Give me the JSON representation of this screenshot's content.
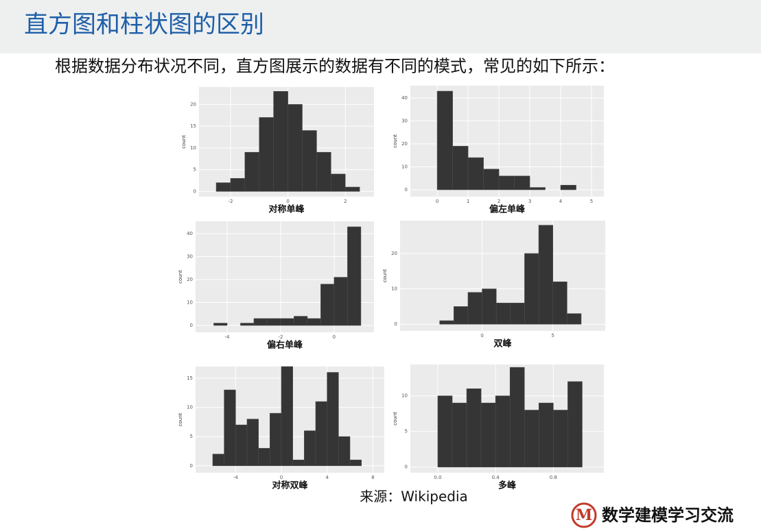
{
  "header": {
    "title": "直方图和柱状图的区别"
  },
  "subtitle": "根据数据分布状况不同，直方图展示的数据有不同的模式，常见的如下所示：",
  "source": "来源：Wikipedia",
  "logo": {
    "icon": "M",
    "text": "数学建模学习交流"
  },
  "chart_data": [
    {
      "type": "histogram",
      "title": "对称单峰",
      "ylabel": "count",
      "color": "#353535",
      "grid": true,
      "bins": [
        -2.5,
        -2,
        -1.5,
        -1,
        -0.5,
        0,
        0.5,
        1,
        1.5,
        2,
        2.5
      ],
      "values": [
        2,
        3,
        9,
        17,
        23,
        20,
        14,
        9,
        4,
        1
      ],
      "xlim": [
        -3.1,
        3
      ],
      "ylim": [
        -1.2,
        24
      ],
      "xticks": [
        -2,
        0,
        2
      ],
      "yticks": [
        0,
        5,
        10,
        15,
        20
      ]
    },
    {
      "type": "histogram",
      "title": "偏左单峰",
      "ylabel": "count",
      "color": "#353535",
      "grid": true,
      "bins": [
        0,
        0.5,
        1,
        1.5,
        2,
        2.5,
        3,
        3.5,
        4,
        4.5
      ],
      "values": [
        43,
        19,
        14,
        9,
        6,
        6,
        1,
        0,
        2
      ],
      "xlim": [
        -0.87,
        5.4
      ],
      "ylim": [
        -3,
        45.4
      ],
      "xticks": [
        0,
        1,
        2,
        3,
        4,
        5
      ],
      "yticks": [
        0,
        10,
        20,
        30,
        40
      ]
    },
    {
      "type": "histogram",
      "title": "偏右单峰",
      "ylabel": "count",
      "color": "#353535",
      "grid": true,
      "bins": [
        -4.5,
        -4,
        -3.5,
        -3,
        -2.5,
        -2,
        -1.5,
        -1,
        -0.5,
        0,
        0.5,
        1
      ],
      "values": [
        1,
        0,
        1,
        3,
        3,
        3,
        4,
        3,
        18,
        21,
        43
      ],
      "xlim": [
        -5.18,
        1.49
      ],
      "ylim": [
        -3,
        45.4
      ],
      "xticks": [
        -4,
        -2,
        0
      ],
      "yticks": [
        0,
        10,
        20,
        30,
        40
      ]
    },
    {
      "type": "histogram",
      "title": "双峰",
      "ylabel": "count",
      "color": "#353535",
      "grid": true,
      "bins": [
        -3,
        -2,
        -1,
        0,
        1,
        2,
        3,
        4,
        5,
        6,
        7
      ],
      "values": [
        1,
        5,
        9,
        10,
        6,
        6,
        20,
        28,
        12,
        3
      ],
      "xlim": [
        -5.8,
        8.7
      ],
      "ylim": [
        -1.9,
        29.3
      ],
      "xticks": [
        0,
        5
      ],
      "yticks": [
        0,
        10,
        20
      ]
    },
    {
      "type": "histogram",
      "title": "对称双峰",
      "ylabel": "count",
      "color": "#353535",
      "grid": true,
      "bins": [
        -6,
        -5,
        -4,
        -3,
        -2,
        -1,
        0,
        1,
        2,
        3,
        4,
        5,
        6,
        7
      ],
      "values": [
        2,
        13,
        7,
        8,
        3,
        9,
        17,
        1,
        6,
        11,
        16,
        5,
        1
      ],
      "xlim": [
        -7.5,
        9
      ],
      "ylim": [
        -1.2,
        17
      ],
      "xticks": [
        -4,
        0,
        4,
        8
      ],
      "yticks": [
        0,
        5,
        10,
        15
      ]
    },
    {
      "type": "histogram",
      "title": "多峰",
      "ylabel": "count",
      "color": "#353535",
      "grid": true,
      "bins": [
        0,
        0.1,
        0.2,
        0.3,
        0.4,
        0.5,
        0.6,
        0.7,
        0.8,
        0.9,
        1
      ],
      "values": [
        10,
        9,
        11,
        9,
        10,
        14,
        8,
        9,
        8,
        12
      ],
      "xlim": [
        -0.19,
        1.15
      ],
      "ylim": [
        -0.8,
        14.4
      ],
      "xticks": [
        {
          "value": 0,
          "label": "0.0"
        },
        {
          "value": 0.4,
          "label": "0.4"
        },
        {
          "value": 0.8,
          "label": "0.8"
        }
      ],
      "yticks": [
        0,
        5,
        10
      ]
    }
  ]
}
